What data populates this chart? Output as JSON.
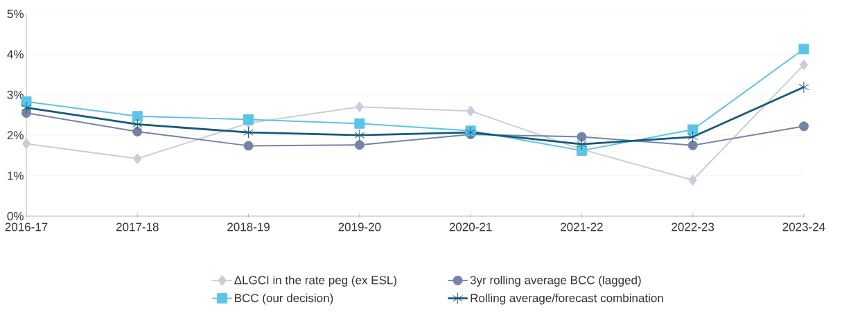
{
  "chart_data": {
    "type": "line",
    "categories": [
      "2016-17",
      "2017-18",
      "2018-19",
      "2019-20",
      "2020-21",
      "2021-22",
      "2022-23",
      "2023-24"
    ],
    "series": [
      {
        "name": "ΔLGCI in the rate peg (ex ESL)",
        "color": "#c8ced9",
        "marker": "diamond",
        "values": [
          1.79,
          1.42,
          2.3,
          2.7,
          2.6,
          1.65,
          0.89,
          3.74
        ]
      },
      {
        "name": "3yr rolling average BCC (lagged)",
        "color": "#7484a4",
        "marker": "circle",
        "values": [
          2.55,
          2.09,
          1.74,
          1.76,
          2.02,
          1.96,
          1.75,
          2.22
        ]
      },
      {
        "name": "BCC (our decision)",
        "color": "#5bc4e8",
        "marker": "square",
        "values": [
          2.83,
          2.47,
          2.39,
          2.29,
          2.11,
          1.62,
          2.14,
          4.13
        ]
      },
      {
        "name": "Rolling average/forecast combination",
        "color": "#145a78",
        "marker": "cross",
        "values": [
          2.68,
          2.27,
          2.07,
          2.0,
          2.07,
          1.78,
          1.96,
          3.19
        ]
      }
    ],
    "ylim": [
      0,
      5
    ],
    "yticks": [
      {
        "value": 0,
        "label": "0%"
      },
      {
        "value": 1,
        "label": "1%"
      },
      {
        "value": 2,
        "label": "2%"
      },
      {
        "value": 3,
        "label": "3%"
      },
      {
        "value": 4,
        "label": "4%"
      },
      {
        "value": 5,
        "label": "5%"
      }
    ],
    "grid": "y",
    "legend": "bottom",
    "line_style": "solid"
  }
}
